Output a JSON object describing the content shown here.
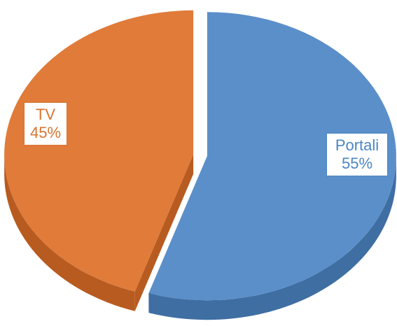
{
  "chart_data": {
    "type": "pie",
    "style": "3d-exploded",
    "categories": [
      "Portali",
      "TV"
    ],
    "values": [
      55,
      45
    ],
    "value_labels": [
      "55%",
      "45%"
    ],
    "colors": [
      "#5B8FC9",
      "#E07B3A"
    ],
    "side_colors": [
      "#3F6EA3",
      "#B85B20"
    ],
    "label_text_colors": [
      "#4A86C5",
      "#D8742F"
    ],
    "title": "",
    "legend": "none"
  }
}
